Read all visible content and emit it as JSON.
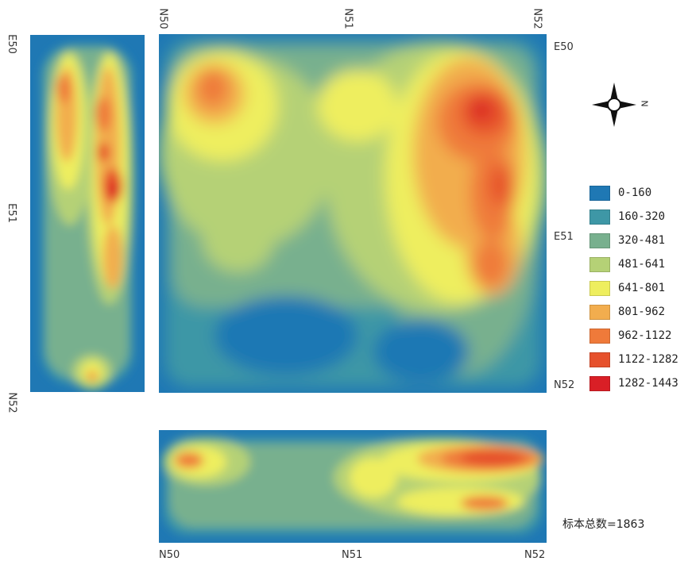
{
  "map": {
    "top_axis": [
      "N50",
      "N51",
      "N52"
    ],
    "right_axis": [
      "E50",
      "E51",
      "N52"
    ],
    "left_axis": [
      "E50",
      "E51",
      "N52"
    ],
    "bottom_axis": [
      "N50",
      "N51",
      "N52"
    ],
    "compass_letter": "N",
    "total_label": "标本总数=1863"
  },
  "legend": [
    {
      "label": "0-160",
      "color": "#1f78b4"
    },
    {
      "label": "160-320",
      "color": "#3e97a6"
    },
    {
      "label": "320-481",
      "color": "#78b08e"
    },
    {
      "label": "481-641",
      "color": "#b5d176"
    },
    {
      "label": "641-801",
      "color": "#eeee5e"
    },
    {
      "label": "801-962",
      "color": "#f2ad4e"
    },
    {
      "label": "962-1122",
      "color": "#ef7a3a"
    },
    {
      "label": "1122-1282",
      "color": "#e6512c"
    },
    {
      "label": "1282-1443",
      "color": "#d91f26"
    }
  ]
}
